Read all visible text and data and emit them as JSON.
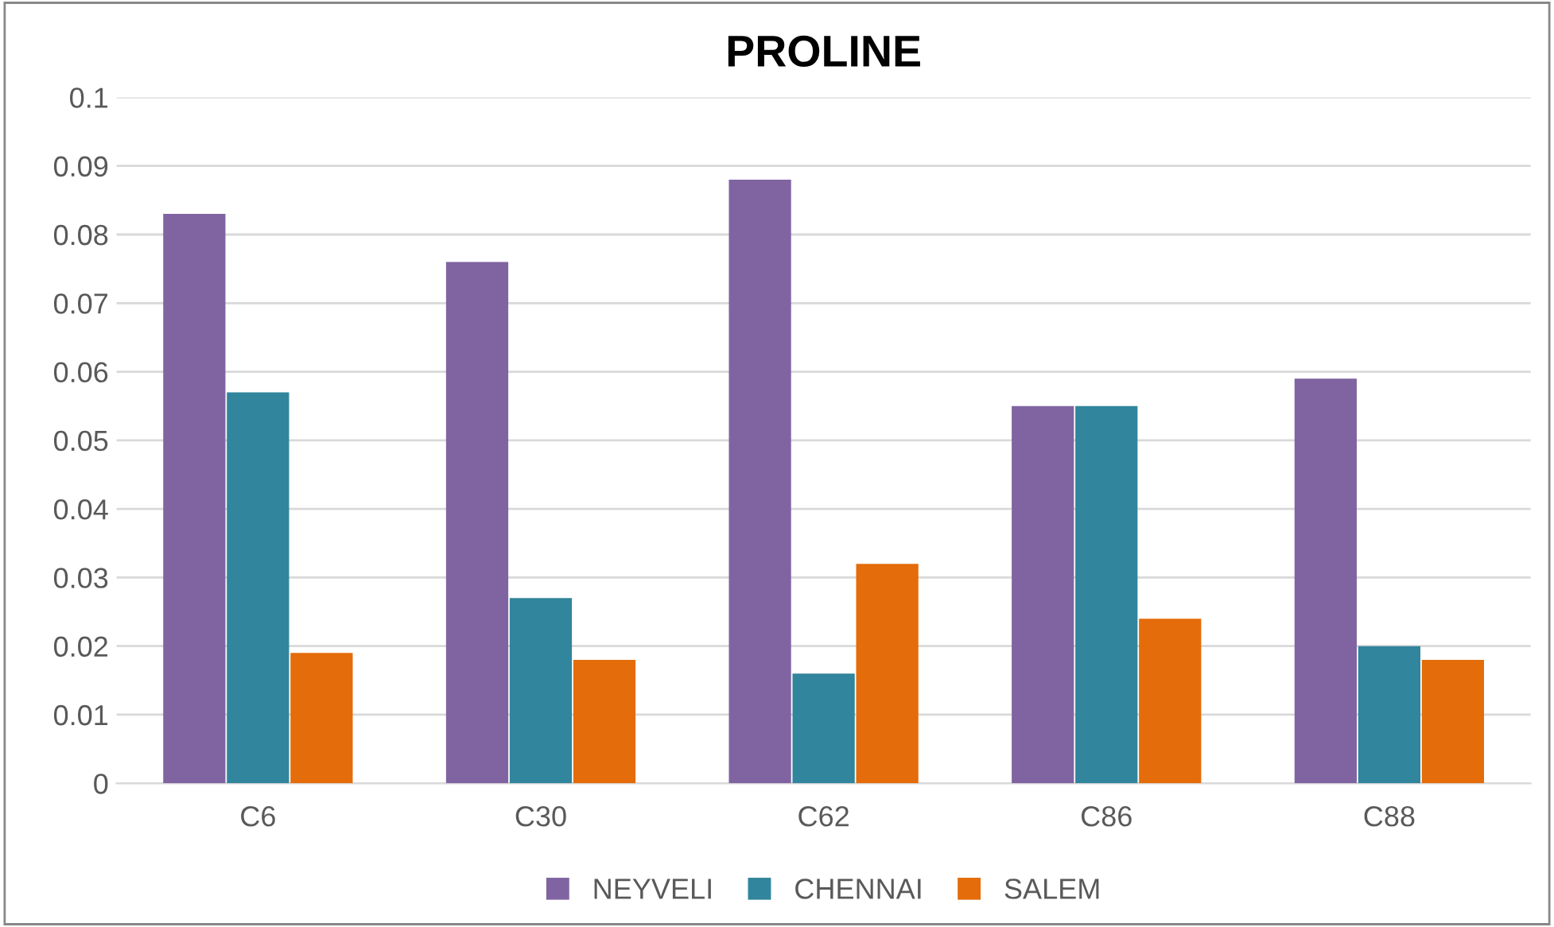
{
  "chart_data": {
    "type": "bar",
    "title": "PROLINE",
    "categories": [
      "C6",
      "C30",
      "C62",
      "C86",
      "C88"
    ],
    "series": [
      {
        "name": "NEYVELI",
        "color": "#8064a2",
        "values": [
          0.083,
          0.076,
          0.088,
          0.055,
          0.059
        ]
      },
      {
        "name": "CHENNAI",
        "color": "#31859c",
        "values": [
          0.057,
          0.027,
          0.016,
          0.055,
          0.02
        ]
      },
      {
        "name": "SALEM",
        "color": "#e46c0a",
        "values": [
          0.019,
          0.018,
          0.032,
          0.024,
          0.018
        ]
      }
    ],
    "ylim": [
      0,
      0.1
    ],
    "yticks": [
      0,
      0.01,
      0.02,
      0.03,
      0.04,
      0.05,
      0.06,
      0.07,
      0.08,
      0.09,
      0.1
    ],
    "grid": "y",
    "legend": "bottom"
  }
}
